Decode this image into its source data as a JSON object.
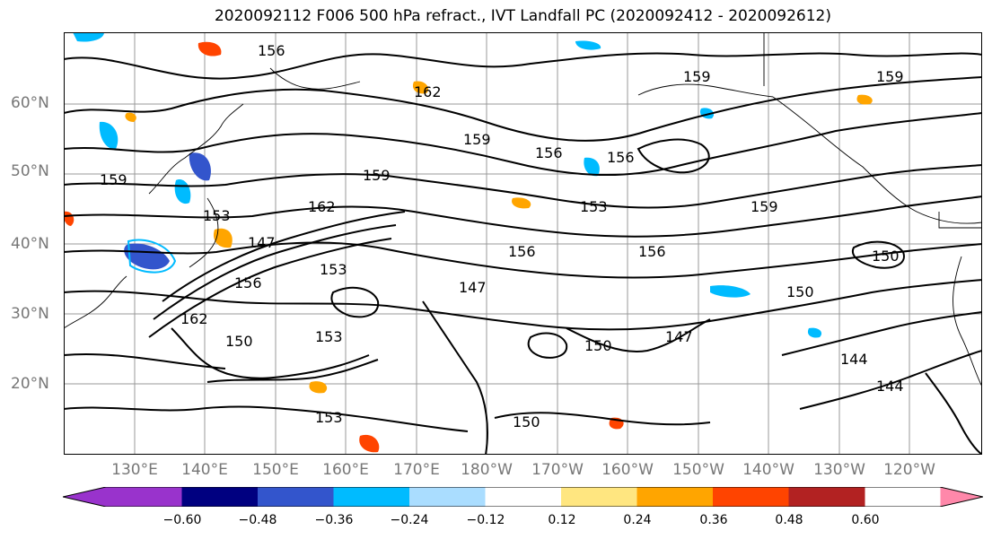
{
  "title": "2020092112 F006 500 hPa refract., IVT Landfall PC (2020092412 - 2020092612)",
  "map": {
    "lat_labels": [
      "60°N",
      "50°N",
      "40°N",
      "30°N",
      "20°N"
    ],
    "lon_labels": [
      "130°E",
      "140°E",
      "150°E",
      "160°E",
      "170°E",
      "180°W",
      "170°W",
      "160°W",
      "150°W",
      "140°W",
      "130°W",
      "120°W"
    ],
    "contour_labels": [
      "156",
      "162",
      "159",
      "156",
      "159",
      "159",
      "153",
      "153",
      "147",
      "156",
      "153",
      "159",
      "162",
      "156",
      "150",
      "150",
      "147",
      "150",
      "156",
      "144",
      "144",
      "147",
      "153",
      "150",
      "159",
      "153",
      "159",
      "162",
      "150",
      "156"
    ],
    "colors": {
      "contour": "#000000",
      "grid": "#999999",
      "coast": "#000000"
    }
  },
  "colorbar": {
    "ticks": [
      "−0.60",
      "−0.48",
      "−0.36",
      "−0.24",
      "−0.12",
      "0.12",
      "0.24",
      "0.36",
      "0.48",
      "0.60"
    ],
    "colors": [
      "#9933cc",
      "#000080",
      "#3355cc",
      "#00bbff",
      "#aaddff",
      "#ffffff",
      "#ffe680",
      "#ffa500",
      "#ff4400",
      "#b22222",
      "#ff88aa"
    ]
  }
}
